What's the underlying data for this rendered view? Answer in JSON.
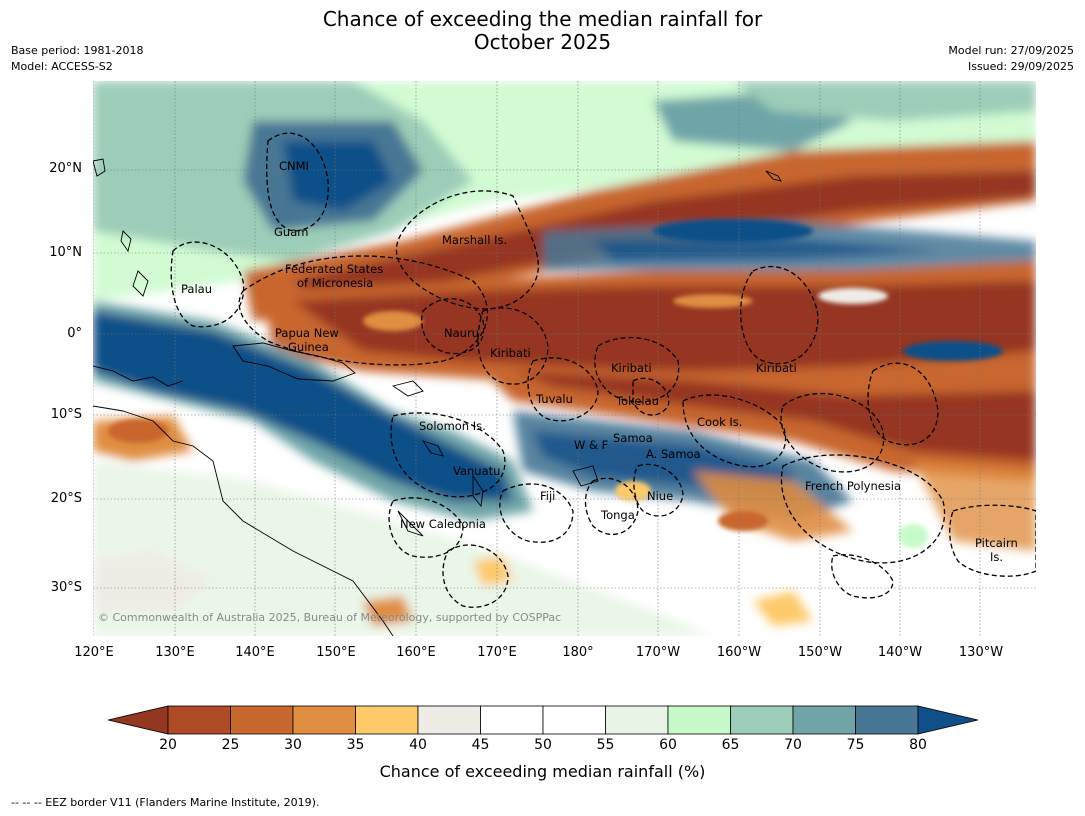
{
  "header": {
    "title_line1": "Chance of exceeding the median rainfall for",
    "title_line2": "October 2025",
    "base_period": "Base period: 1981-2018",
    "model": "Model: ACCESS-S2",
    "model_run": "Model run: 27/09/2025",
    "issued": "Issued: 29/09/2025"
  },
  "map": {
    "lat_labels": [
      "20°N",
      "10°N",
      "0°",
      "10°S",
      "20°S",
      "30°S"
    ],
    "lon_labels": [
      "120°E",
      "130°E",
      "140°E",
      "150°E",
      "160°E",
      "170°E",
      "180°",
      "170°W",
      "160°W",
      "150°W",
      "140°W",
      "130°W"
    ],
    "places": {
      "cnmi": "CNMI",
      "guam": "Guam",
      "marshall": "Marshall Is.",
      "fsm_1": "Federated States",
      "fsm_2": "of Micronesia",
      "palau": "Palau",
      "png_1": "Papua New",
      "png_2": "Guinea",
      "nauru": "Nauru",
      "kiribati_w": "Kiribati",
      "kiribati_c": "Kiribati",
      "kiribati_e": "Kiribati",
      "tuvalu": "Tuvalu",
      "tokelau": "Tokelau",
      "cook": "Cook Is.",
      "solomon": "Solomon Is.",
      "samoa": "Samoa",
      "wf": "W & F",
      "asamoa": "A. Samoa",
      "vanuatu": "Vanuatu",
      "fiji": "Fiji",
      "niue": "Niue",
      "tonga": "Tonga",
      "frpoly": "French Polynesia",
      "newcal": "New Caledonia",
      "pitcairn_1": "Pitcairn",
      "pitcairn_2": "Is."
    },
    "copyright": "© Commonwealth of Australia 2025, Bureau of Meteorology, supported by COSPPac"
  },
  "legend": {
    "ticks": [
      "20",
      "25",
      "30",
      "35",
      "40",
      "45",
      "50",
      "55",
      "60",
      "65",
      "70",
      "75",
      "80"
    ],
    "label": "Chance of exceeding median rainfall (%)",
    "colors": [
      "#953621",
      "#af4a26",
      "#c8662f",
      "#e08e42",
      "#fdc96b",
      "#efece6",
      "#ffffff",
      "#ffffff",
      "#e8f5e6",
      "#c7fac9",
      "#9ccdb8",
      "#6fa5a8",
      "#467795",
      "#104f88"
    ]
  },
  "footnote": "--  --  -- EEZ border V11 (Flanders Marine Institute, 2019)."
}
